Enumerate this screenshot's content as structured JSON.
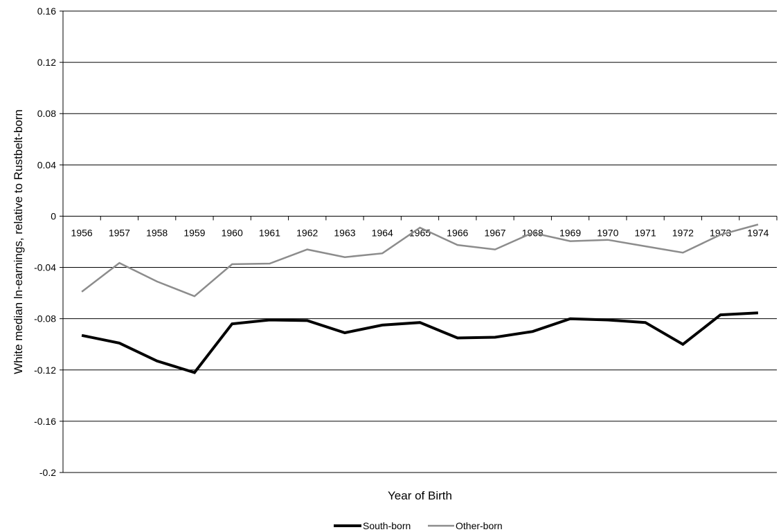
{
  "chart_data": {
    "type": "line",
    "title": "",
    "xlabel": "Year of Birth",
    "ylabel": "White median ln-earnings, relative to Rustbelt-born",
    "ylim": [
      -0.2,
      0.16
    ],
    "y_ticks": [
      "0.16",
      "0.12",
      "0.08",
      "0.04",
      "0",
      "-0.04",
      "-0.08",
      "-0.12",
      "-0.16",
      "-0.2"
    ],
    "y_tick_values": [
      0.16,
      0.12,
      0.08,
      0.04,
      0,
      -0.04,
      -0.08,
      -0.12,
      -0.16,
      -0.2
    ],
    "categories": [
      "1956",
      "1957",
      "1958",
      "1959",
      "1960",
      "1961",
      "1962",
      "1963",
      "1964",
      "1965",
      "1966",
      "1967",
      "1968",
      "1969",
      "1970",
      "1971",
      "1972",
      "1973",
      "1974"
    ],
    "grid": true,
    "legend_position": "bottom",
    "series": [
      {
        "name": "South-born",
        "color": "#000000",
        "values": [
          -0.093,
          -0.099,
          -0.113,
          -0.122,
          -0.084,
          -0.081,
          -0.0815,
          -0.091,
          -0.085,
          -0.083,
          -0.095,
          -0.0945,
          -0.09,
          -0.08,
          -0.081,
          -0.083,
          -0.1,
          -0.077,
          -0.0755
        ]
      },
      {
        "name": "Other-born",
        "color": "#8c8c8c",
        "values": [
          -0.059,
          -0.0365,
          -0.051,
          -0.0625,
          -0.0375,
          -0.037,
          -0.026,
          -0.032,
          -0.029,
          -0.009,
          -0.0225,
          -0.026,
          -0.013,
          -0.0195,
          -0.0185,
          -0.0235,
          -0.0285,
          -0.0145,
          -0.0065
        ]
      }
    ]
  }
}
